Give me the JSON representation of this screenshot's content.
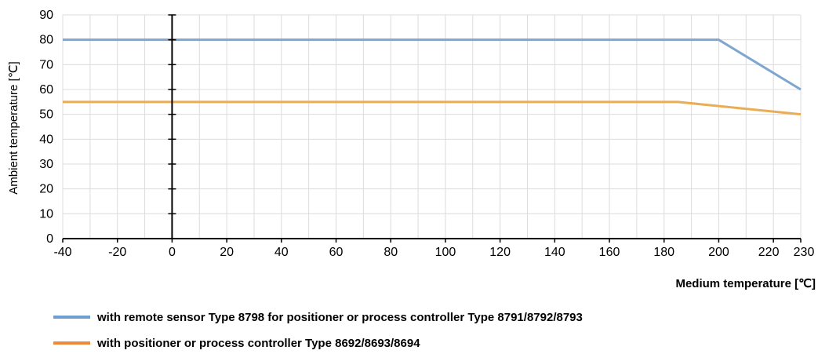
{
  "chart_data": {
    "type": "line",
    "title": "",
    "xlabel": "Medium temperature [℃]",
    "ylabel": "Ambient temperature [℃]",
    "xlim": [
      -40,
      230
    ],
    "ylim": [
      0,
      90
    ],
    "x_ticks": [
      -40,
      -20,
      0,
      20,
      40,
      60,
      80,
      100,
      120,
      140,
      160,
      180,
      200,
      220,
      230
    ],
    "y_ticks": [
      0,
      10,
      20,
      30,
      40,
      50,
      60,
      70,
      80,
      90
    ],
    "grid": true,
    "legend_position": "bottom-left",
    "series": [
      {
        "name": "with remote sensor Type 8798 for positioner or process controller Type 8791/8792/8793",
        "color": "#7fa6cf",
        "legend_color": "#6f9fd0",
        "x": [
          -40,
          200,
          230
        ],
        "y": [
          80,
          80,
          60
        ]
      },
      {
        "name": "with positioner or process controller Type 8692/8693/8694",
        "color": "#e8ad55",
        "legend_color": "#ef8a3b",
        "x": [
          -40,
          185,
          230
        ],
        "y": [
          55,
          55,
          50
        ]
      }
    ]
  }
}
